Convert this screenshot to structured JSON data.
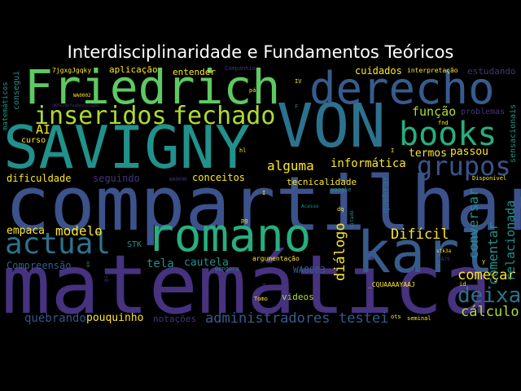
{
  "title": "Interdisciplinaridade e Fundamentos Teóricos",
  "colors": {
    "background": "#000000",
    "purple": "#46327e",
    "deep_purple": "#440154",
    "indigo": "#3b528b",
    "blue": "#365c8d",
    "teal_blue": "#2c728e",
    "teal": "#21918c",
    "sea_green": "#28ae80",
    "green": "#5ec962",
    "yellow_green": "#addc30",
    "yellow": "#fde725"
  },
  "words": {
    "compartilhar": "compartilhar",
    "matematica": "matemática",
    "savigny": "SAVIGNY",
    "von": "VON",
    "friedrich": "Friedrich",
    "derecho": "derecho",
    "karl": "karl",
    "romano": "romano",
    "actual": "actual",
    "books": "books",
    "inseridos": "inseridos",
    "fechado": "fechado",
    "grupos": "grupos",
    "deixa": "deixa",
    "calculo": "cálculo",
    "funcao": "função",
    "administradores": "administradores",
    "testei": "testei",
    "dialogo": "diálogo",
    "comecar": "começar",
    "conversar": "conversar",
    "comentar": "comentar",
    "relacionada": "relacionada",
    "alguma": "alguma",
    "informatica": "informática",
    "termos": "termos",
    "passou": "passou",
    "dificil": "Difícil",
    "modelo": "modelo",
    "empaca": "empaca",
    "tela": "tela",
    "cautela": "cautela",
    "quebrando": "quebrando",
    "pouquinho": "pouquinho",
    "notacoes": "notações",
    "compreensao": "Compreensão",
    "dificuldade": "dificuldade",
    "seguindo": "seguindo",
    "conceitos": "conceitos",
    "tecnicalidade": "tecnicalidade",
    "cuidados": "cuidados",
    "interpretacao": "interpretação",
    "estudando": "estudando",
    "aplicacao": "aplicação",
    "entender": "entender",
    "ai": "AI",
    "curso": "curso",
    "consegui": "consegui",
    "matematicos": "matemáticos",
    "problemas": "problemas",
    "sensacionais": "sensacionais",
    "videos": "videos",
    "quebrar": "quebrar",
    "wa0003": "WA0003",
    "argumentacao": "argumentação",
    "stk": "STK",
    "cquaaa": "_CQUAAAAYAAJ",
    "tomo": "Tomo",
    "seminal": "seminal",
    "ots": "ots",
    "pg": "pg",
    "hl": "hl",
    "dq": "dq",
    "id": "id",
    "fnd": "fnd",
    "iv": "IV",
    "pa": "pá",
    "disponivel": "Disponível",
    "google": "google",
    "wa0000": "WA0000",
    "wa0002": "WA0002",
    "companhia": "Companhia",
    "gongora": "Gongora",
    "acesso": "Acesso",
    "citado": "citado",
    "stk3a": "stk3a",
    "pa79": "PA79",
    "y": "y",
    "en": "en",
    "sis": "sis",
    "gs": "gs",
    "code": "7jgxgJgqky",
    "hash": "UKEwidzfwx6pvsLoQ8A",
    "i1": "I",
    "i2": "I",
    "f1": "F"
  }
}
